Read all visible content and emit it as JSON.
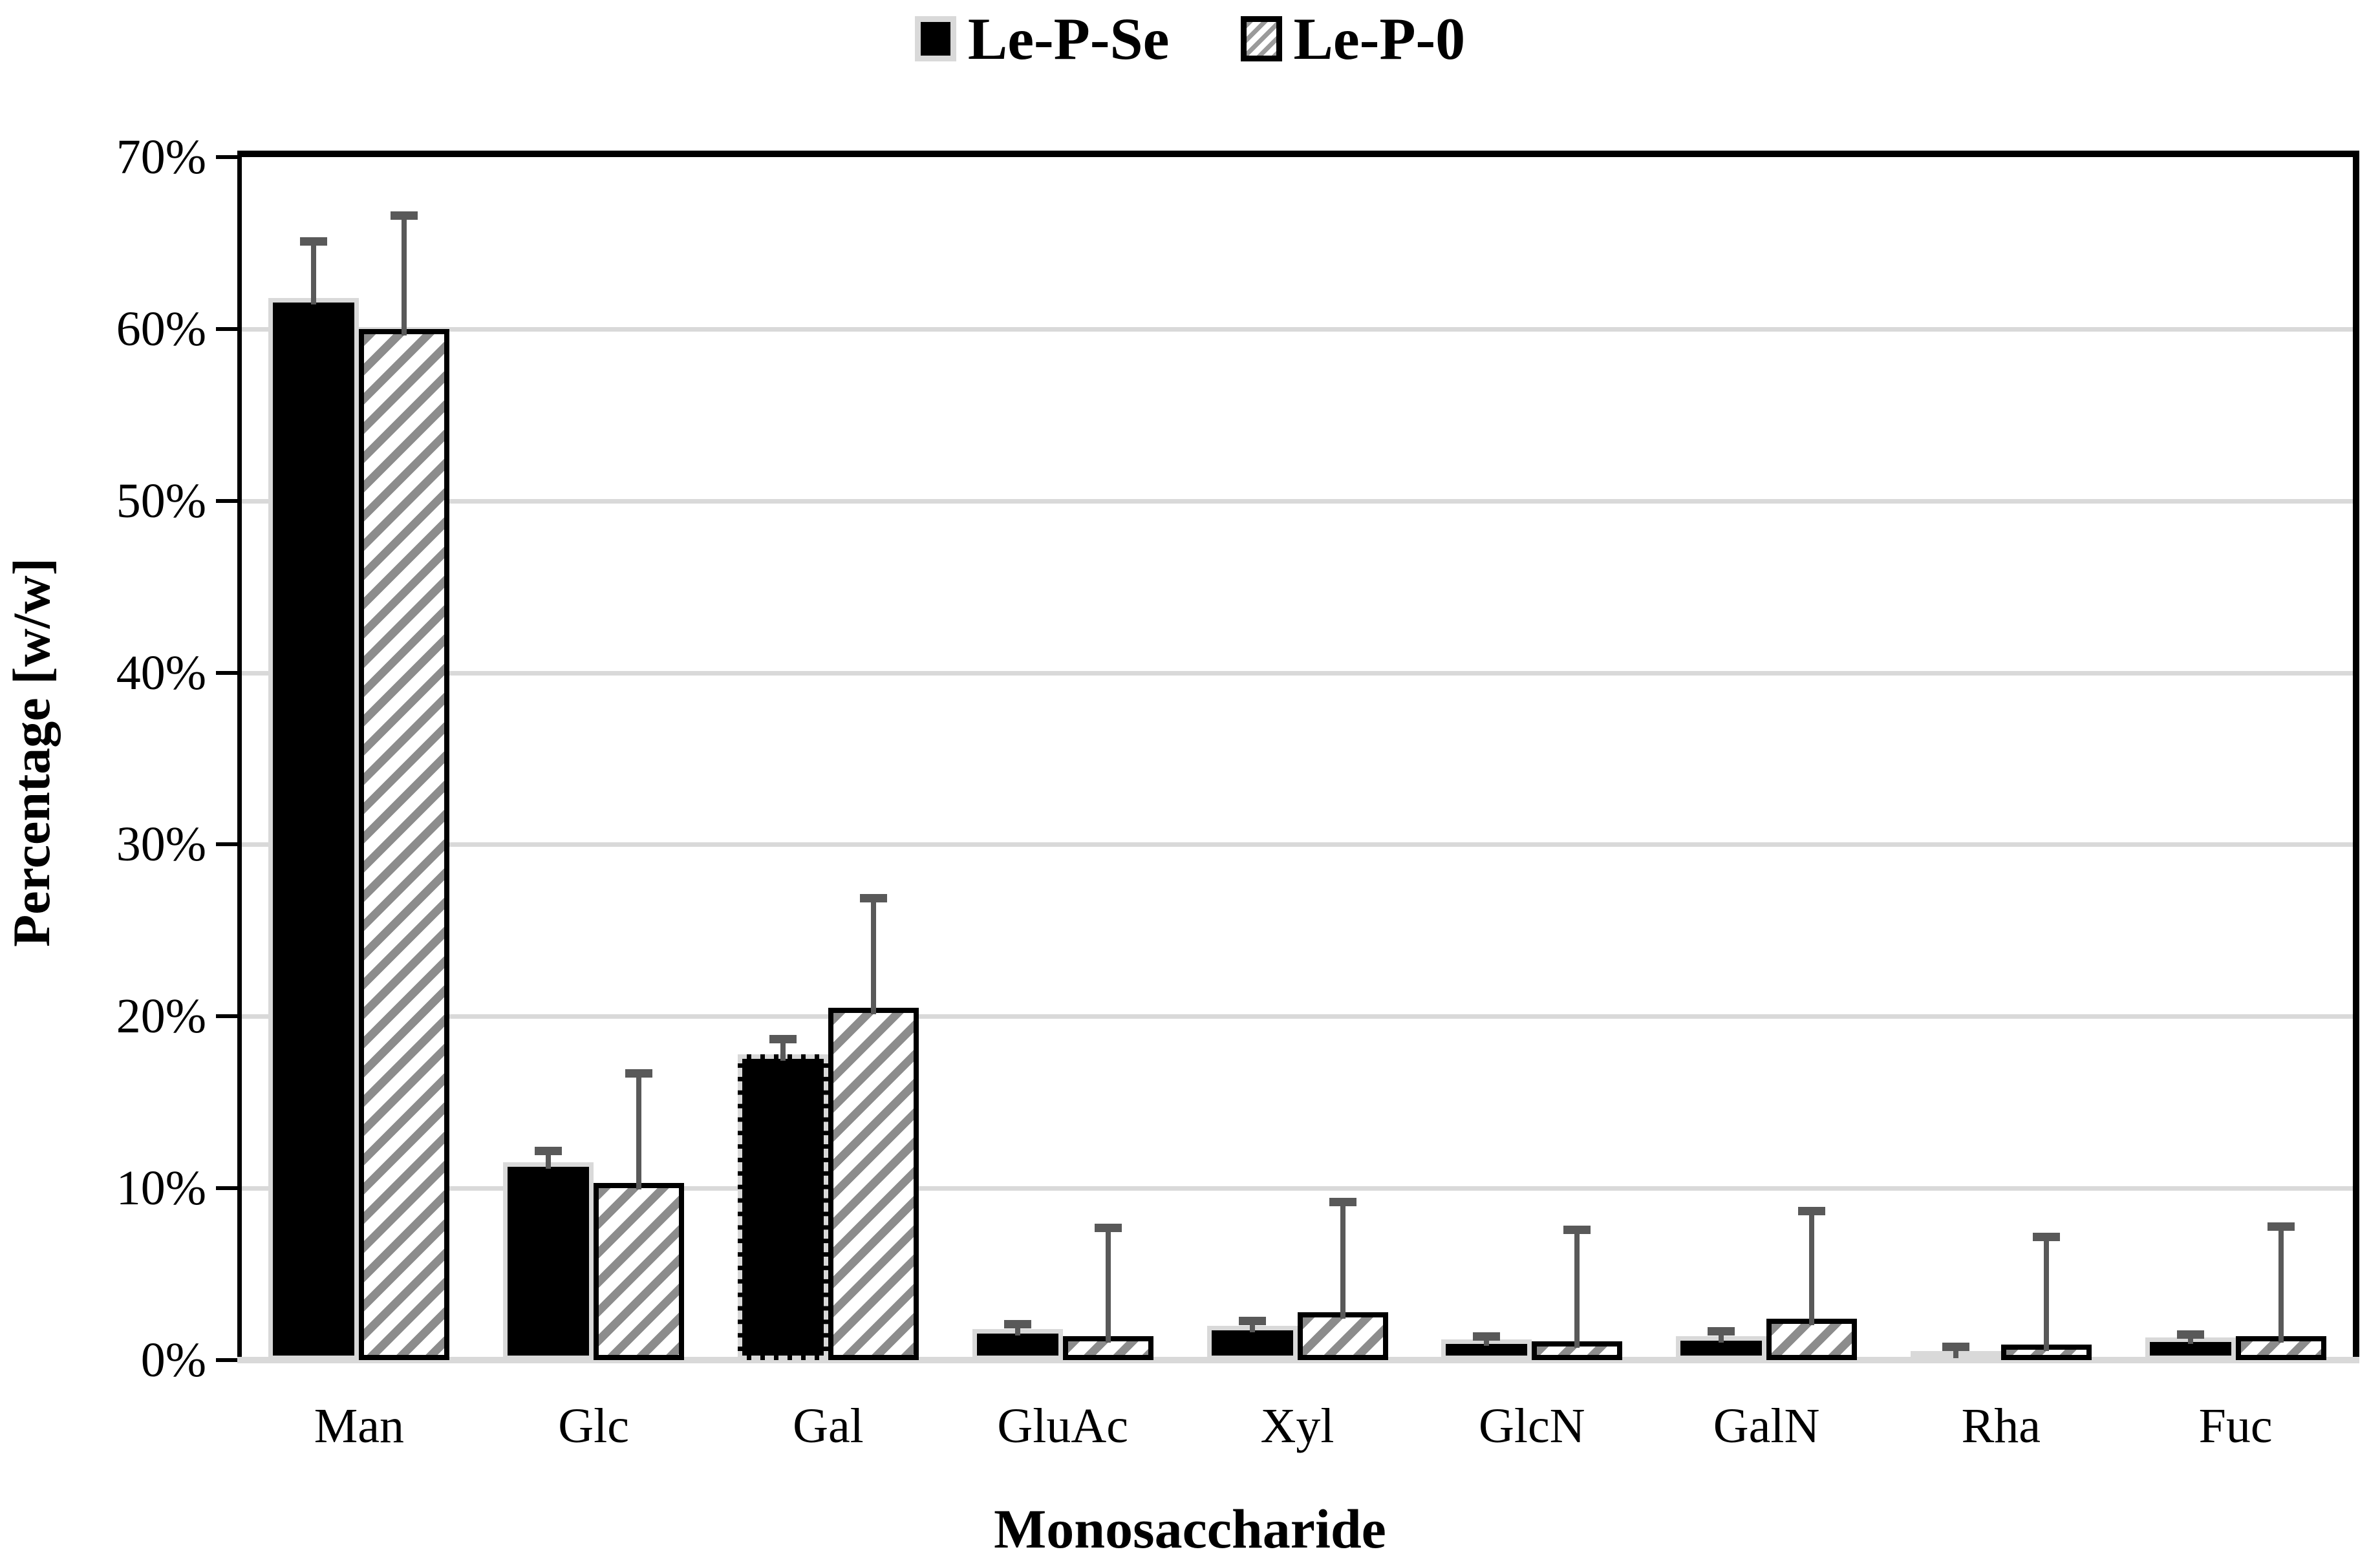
{
  "page": {
    "background": "#ffffff"
  },
  "legend": {
    "items": [
      {
        "label": "Le-P-Se",
        "swatch": "solid-black"
      },
      {
        "label": "Le-P-0",
        "swatch": "hatched-gray"
      }
    ]
  },
  "axes": {
    "y_title": "Percentage [w/w]",
    "x_title": "Monosaccharide",
    "y_ticks": [
      "0%",
      "10%",
      "20%",
      "30%",
      "40%",
      "50%",
      "60%",
      "70%"
    ]
  },
  "colors": {
    "bar_black": "#000000",
    "bar_black_outline": "#d9d9d9",
    "hatch_stripe": "#8c8c8c",
    "hatch_background": "#ffffff",
    "hatch_outline": "#000000",
    "error_bar": "#595959",
    "gridline": "#d9d9d9",
    "axis_line": "#000000"
  },
  "chart_data": {
    "type": "bar",
    "title": "",
    "xlabel": "Monosaccharide",
    "ylabel": "Percentage [w/w]",
    "ylim": [
      0,
      70
    ],
    "ytick_step": 10,
    "ytick_format": "percent",
    "grid": true,
    "legend_position": "top-center",
    "error_bars": "upper-only",
    "categories": [
      "Man",
      "Glc",
      "Gal",
      "GluAc",
      "Xyl",
      "GlcN",
      "GalN",
      "Rha",
      "Fuc"
    ],
    "series": [
      {
        "name": "Le-P-Se",
        "style": "solid-black",
        "values": [
          61.8,
          11.5,
          17.8,
          1.8,
          2.0,
          1.2,
          1.4,
          0.5,
          1.3
        ],
        "errors": [
          3.3,
          0.7,
          0.9,
          0.3,
          0.3,
          0.2,
          0.3,
          0.3,
          0.2
        ],
        "dashed_outline_categories": [
          "Gal"
        ]
      },
      {
        "name": "Le-P-0",
        "style": "hatched-gray",
        "values": [
          60.0,
          10.3,
          20.5,
          1.4,
          2.8,
          1.1,
          2.4,
          0.9,
          1.4
        ],
        "errors": [
          6.6,
          6.4,
          6.4,
          6.3,
          6.4,
          6.5,
          6.3,
          6.3,
          6.4
        ]
      }
    ]
  }
}
